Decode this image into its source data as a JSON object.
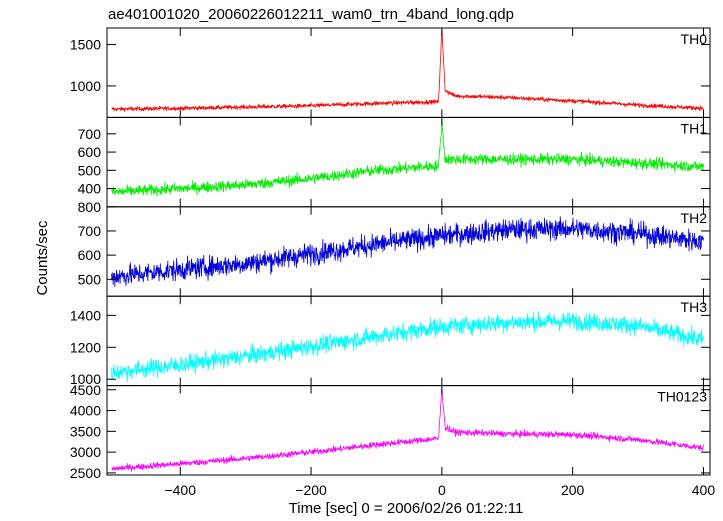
{
  "chart_data": {
    "type": "line",
    "title": "ae401001020_20060226012211_wam0_trn_4band_long.qdp",
    "xlabel": "Time [sec] 0 = 2006/02/26 01:22:11",
    "ylabel": "Counts/sec",
    "xlim": [
      -512,
      410
    ],
    "x_ticks": [
      -400,
      -200,
      0,
      200,
      400
    ],
    "x_tick_labels": [
      "−400",
      "−200",
      "0",
      "200",
      "400"
    ],
    "panels": [
      {
        "label": "TH0",
        "color": "#ff0000",
        "ylim": [
          620,
          1700
        ],
        "y_ticks": [
          1000,
          1500
        ],
        "y_tick_labels": [
          "1000",
          "1500"
        ],
        "profile": [
          [
            -505,
            720
          ],
          [
            -400,
            730
          ],
          [
            -200,
            760
          ],
          [
            -100,
            790
          ],
          [
            -5,
            810
          ],
          [
            0,
            1690
          ],
          [
            5,
            950
          ],
          [
            20,
            880
          ],
          [
            100,
            860
          ],
          [
            200,
            820
          ],
          [
            300,
            770
          ],
          [
            400,
            730
          ]
        ],
        "noise": 18
      },
      {
        "label": "TH1",
        "color": "#00ee00",
        "ylim": [
          300,
          790
        ],
        "y_ticks": [
          400,
          500,
          600,
          700
        ],
        "y_tick_labels": [
          "400",
          "500",
          "600",
          "700"
        ],
        "profile": [
          [
            -505,
            380
          ],
          [
            -400,
            400
          ],
          [
            -300,
            420
          ],
          [
            -200,
            455
          ],
          [
            -100,
            500
          ],
          [
            -5,
            525
          ],
          [
            0,
            760
          ],
          [
            5,
            560
          ],
          [
            100,
            560
          ],
          [
            200,
            560
          ],
          [
            300,
            540
          ],
          [
            400,
            520
          ]
        ],
        "noise": 22
      },
      {
        "label": "TH2",
        "color": "#0000dd",
        "ylim": [
          430,
          800
        ],
        "y_ticks": [
          500,
          600,
          700,
          800
        ],
        "y_tick_labels": [
          "500",
          "600",
          "700",
          "800"
        ],
        "profile": [
          [
            -505,
            510
          ],
          [
            -400,
            540
          ],
          [
            -300,
            565
          ],
          [
            -200,
            605
          ],
          [
            -100,
            645
          ],
          [
            0,
            680
          ],
          [
            100,
            705
          ],
          [
            200,
            710
          ],
          [
            300,
            690
          ],
          [
            400,
            655
          ]
        ],
        "noise": 32
      },
      {
        "label": "TH3",
        "color": "#00ffff",
        "ylim": [
          960,
          1520
        ],
        "y_ticks": [
          1000,
          1200,
          1400
        ],
        "y_tick_labels": [
          "1000",
          "1200",
          "1400"
        ],
        "profile": [
          [
            -505,
            1040
          ],
          [
            -400,
            1090
          ],
          [
            -300,
            1145
          ],
          [
            -200,
            1205
          ],
          [
            -100,
            1270
          ],
          [
            0,
            1330
          ],
          [
            100,
            1355
          ],
          [
            200,
            1365
          ],
          [
            300,
            1335
          ],
          [
            400,
            1245
          ]
        ],
        "noise": 40
      },
      {
        "label": "TH0123",
        "color": "#ff00ff",
        "ylim": [
          2450,
          4600
        ],
        "y_ticks": [
          2500,
          3000,
          3500,
          4000,
          4500
        ],
        "y_tick_labels": [
          "2500",
          "3000",
          "3500",
          "4000",
          "4500"
        ],
        "profile": [
          [
            -505,
            2600
          ],
          [
            -400,
            2720
          ],
          [
            -300,
            2850
          ],
          [
            -200,
            3000
          ],
          [
            -100,
            3180
          ],
          [
            -5,
            3330
          ],
          [
            0,
            4550
          ],
          [
            5,
            3600
          ],
          [
            20,
            3480
          ],
          [
            100,
            3440
          ],
          [
            200,
            3420
          ],
          [
            300,
            3300
          ],
          [
            400,
            3100
          ]
        ],
        "noise": 55
      }
    ],
    "grid": false,
    "legend": "none"
  }
}
